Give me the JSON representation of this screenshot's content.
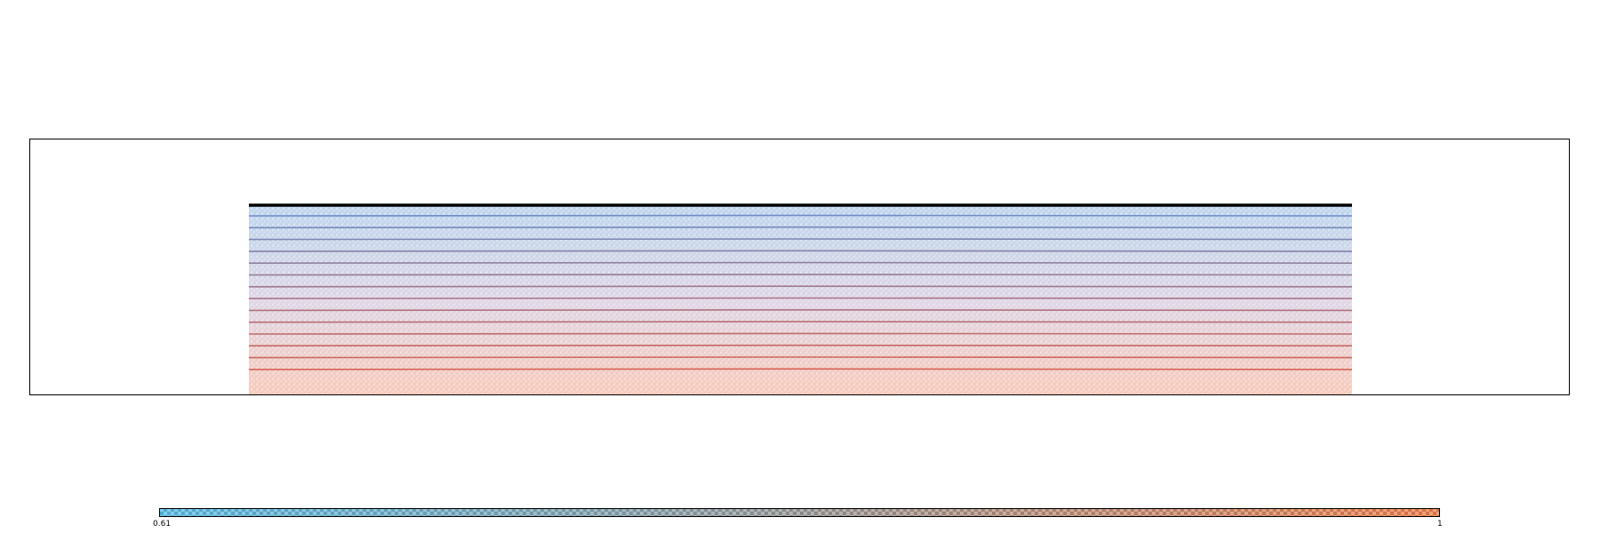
{
  "colorbar": {
    "min_label": "0.61",
    "max_label": "1",
    "min_value": 0.61,
    "max_value": 1,
    "low_color": "#4aaed8",
    "mid_color": "#8a8a8a",
    "high_color": "#e0703c"
  },
  "domain": {
    "border_color": "#000000",
    "surface_color": "#000000",
    "particle_top_color": "#6fa3d6",
    "particle_bottom_color": "#ef8a66"
  },
  "layers": {
    "count": 14
  }
}
